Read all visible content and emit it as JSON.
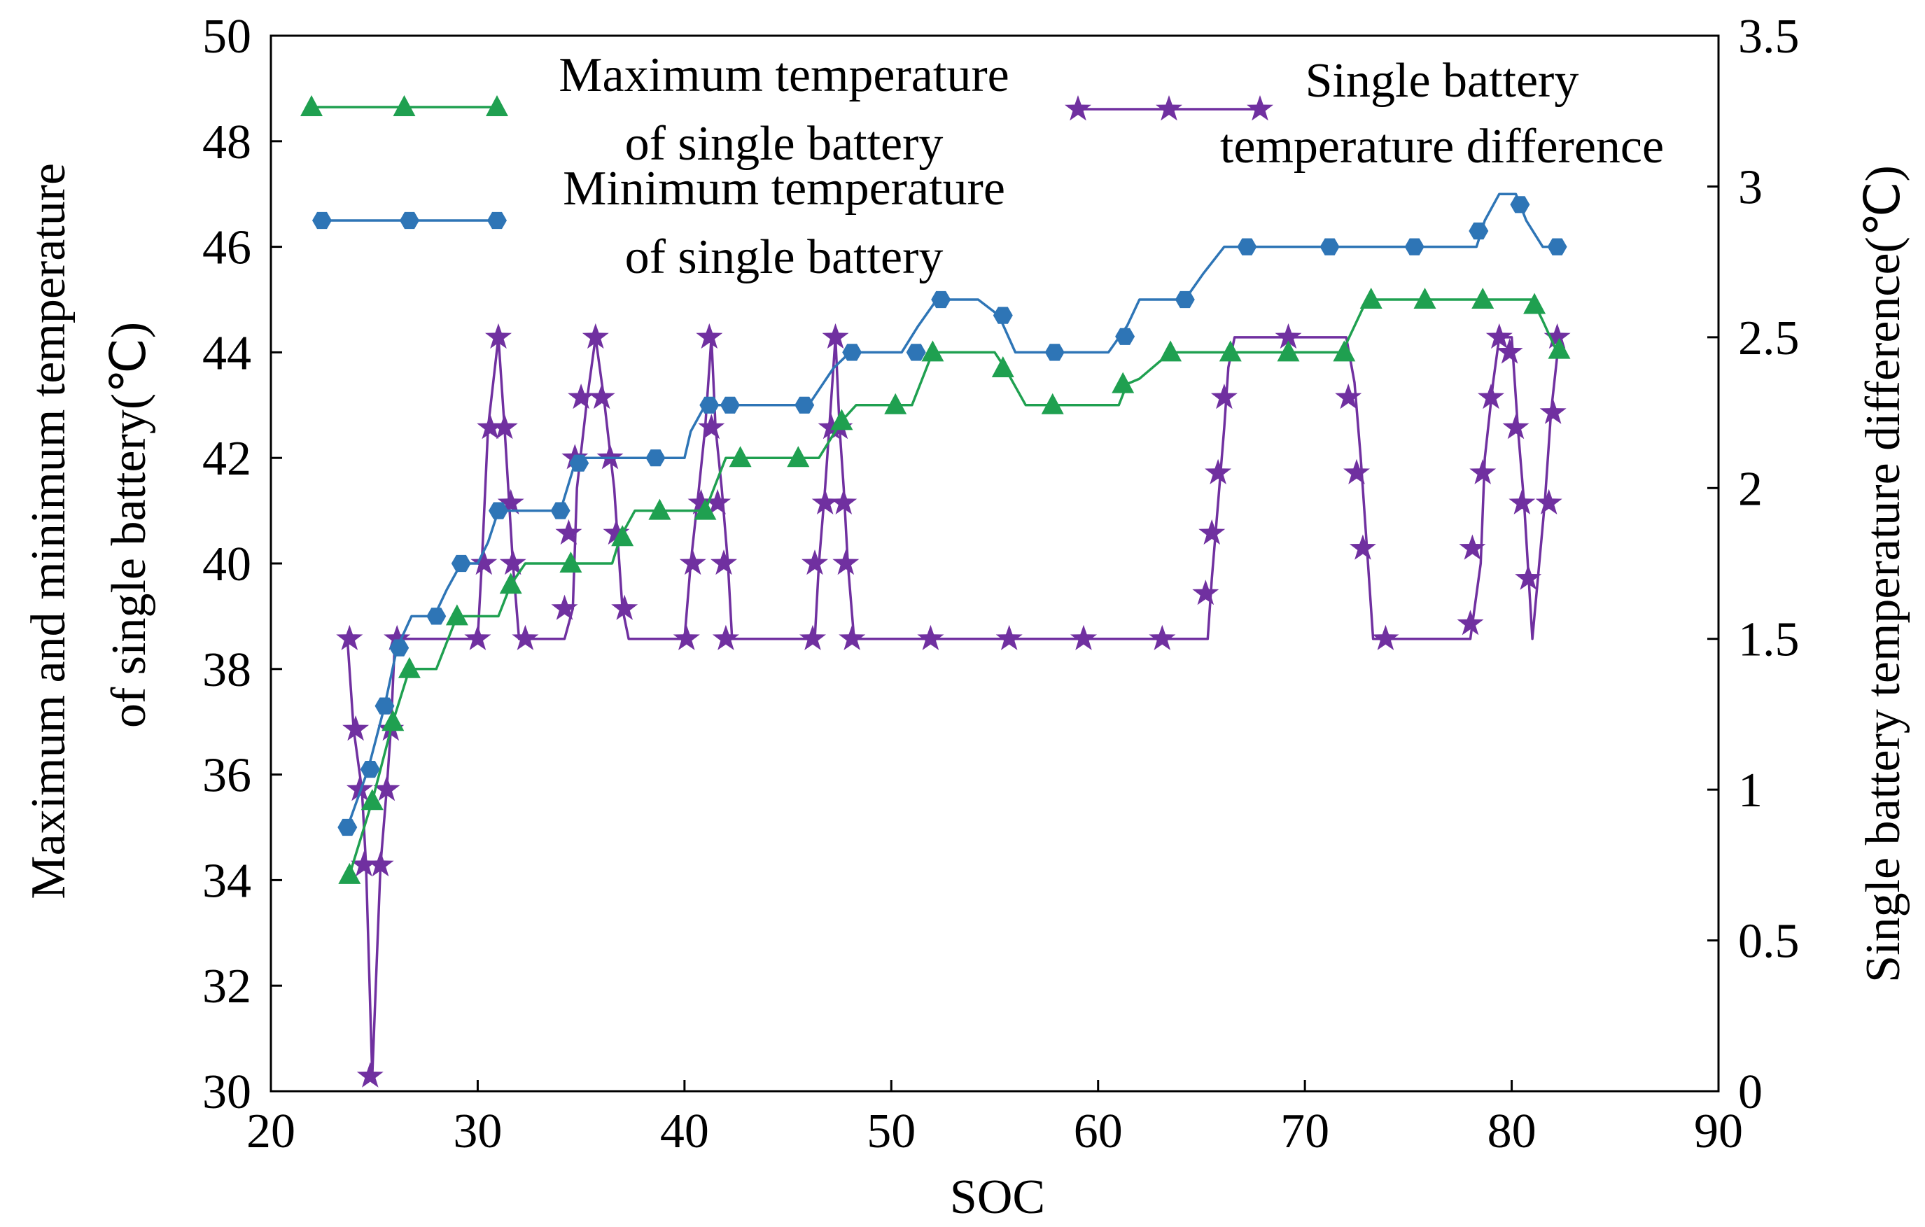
{
  "chart_data": {
    "type": "line",
    "xlabel": "SOC",
    "ylabel_left": [
      "Maximum and minimum temperature",
      "of single battery(℃)"
    ],
    "ylabel_right": "Single battery temperature difference(℃)",
    "xlim": [
      20,
      90
    ],
    "ylim_left": [
      30,
      50
    ],
    "ylim_right": [
      0,
      3.5
    ],
    "x_ticks": [
      "20",
      "30",
      "40",
      "50",
      "60",
      "70",
      "80",
      "90"
    ],
    "y_left_ticks": [
      "30",
      "32",
      "34",
      "36",
      "38",
      "40",
      "42",
      "44",
      "46",
      "48",
      "50"
    ],
    "y_right_ticks": [
      "0",
      "0.5",
      "1",
      "1.5",
      "2",
      "2.5",
      "3",
      "3.5"
    ],
    "grid": false,
    "legend_position": "top",
    "series": [
      {
        "name": "Maximum temperature of single battery",
        "legend_lines": [
          "Maximum temperature",
          "of single battery"
        ],
        "axis": "left",
        "color": "#1fa050",
        "marker": "triangle",
        "points": [
          [
            23.8,
            34.1
          ],
          [
            24.9,
            35.5
          ],
          [
            25.9,
            37
          ],
          [
            26.7,
            38
          ],
          [
            28,
            38
          ],
          [
            29,
            39
          ],
          [
            31,
            39
          ],
          [
            31.6,
            39.6
          ],
          [
            32.3,
            40
          ],
          [
            34.5,
            40
          ],
          [
            36.5,
            40
          ],
          [
            36.9,
            40.5
          ],
          [
            37.6,
            41
          ],
          [
            38.8,
            41
          ],
          [
            41,
            41
          ],
          [
            42,
            42
          ],
          [
            42.6,
            42
          ],
          [
            45.5,
            42
          ],
          [
            46.5,
            42
          ],
          [
            47.6,
            42.7
          ],
          [
            48.3,
            43
          ],
          [
            50.2,
            43
          ],
          [
            51,
            43
          ],
          [
            52,
            44
          ],
          [
            55,
            44
          ],
          [
            55.5,
            43.7
          ],
          [
            56.5,
            43
          ],
          [
            57.8,
            43
          ],
          [
            61,
            43
          ],
          [
            61.4,
            43.4
          ],
          [
            62,
            43.5
          ],
          [
            63.5,
            44
          ],
          [
            66.5,
            44
          ],
          [
            69.2,
            44
          ],
          [
            71.8,
            44
          ],
          [
            73,
            45
          ],
          [
            75.8,
            45
          ],
          [
            78.6,
            45
          ],
          [
            81,
            45
          ],
          [
            81.5,
            44.6
          ],
          [
            82.2,
            44
          ]
        ],
        "markers": [
          [
            23.8,
            34.1
          ],
          [
            24.9,
            35.5
          ],
          [
            25.9,
            37
          ],
          [
            26.7,
            38
          ],
          [
            29,
            39
          ],
          [
            31.6,
            39.6
          ],
          [
            34.5,
            40
          ],
          [
            37,
            40.5
          ],
          [
            38.8,
            41
          ],
          [
            41,
            41
          ],
          [
            42.7,
            42
          ],
          [
            45.5,
            42
          ],
          [
            47.6,
            42.7
          ],
          [
            50.2,
            43
          ],
          [
            52,
            44
          ],
          [
            55.4,
            43.7
          ],
          [
            57.8,
            43
          ],
          [
            61.2,
            43.4
          ],
          [
            63.5,
            44
          ],
          [
            66.4,
            44
          ],
          [
            69.2,
            44
          ],
          [
            71.9,
            44
          ],
          [
            73.2,
            45
          ],
          [
            75.8,
            45
          ],
          [
            78.6,
            45
          ],
          [
            81.1,
            44.9
          ],
          [
            82.3,
            44.05
          ]
        ]
      },
      {
        "name": "Minimum temperature of single battery",
        "legend_lines": [
          "Minimum temperature",
          "of single battery"
        ],
        "axis": "left",
        "color": "#2e75b6",
        "marker": "hexagon",
        "points": [
          [
            23.7,
            35
          ],
          [
            24.7,
            36.1
          ],
          [
            25.5,
            37.3
          ],
          [
            26.1,
            38.4
          ],
          [
            26.8,
            39
          ],
          [
            27.9,
            39
          ],
          [
            28.5,
            39.5
          ],
          [
            29.2,
            40
          ],
          [
            30,
            40
          ],
          [
            30.5,
            40.4
          ],
          [
            31,
            41
          ],
          [
            34,
            41
          ],
          [
            34.7,
            41.9
          ],
          [
            35.2,
            42
          ],
          [
            40,
            42
          ],
          [
            40.3,
            42.5
          ],
          [
            41,
            43
          ],
          [
            42.2,
            43
          ],
          [
            46,
            43
          ],
          [
            47.2,
            43.7
          ],
          [
            48,
            44
          ],
          [
            50.5,
            44
          ],
          [
            51.3,
            44.5
          ],
          [
            52.2,
            45
          ],
          [
            54.2,
            45
          ],
          [
            55.2,
            44.7
          ],
          [
            56,
            44
          ],
          [
            57.8,
            44
          ],
          [
            60.5,
            44
          ],
          [
            61.4,
            44.5
          ],
          [
            62,
            45
          ],
          [
            64.2,
            45
          ],
          [
            65.1,
            45.5
          ],
          [
            66.1,
            46
          ],
          [
            75.5,
            46
          ],
          [
            78.3,
            46
          ],
          [
            78.7,
            46.5
          ],
          [
            79.4,
            47
          ],
          [
            80.2,
            47
          ],
          [
            80.7,
            46.5
          ],
          [
            81.5,
            46
          ],
          [
            82.1,
            46
          ]
        ],
        "markers": [
          [
            23.7,
            35
          ],
          [
            24.8,
            36.1
          ],
          [
            25.5,
            37.3
          ],
          [
            26.2,
            38.4
          ],
          [
            28,
            39
          ],
          [
            29.2,
            40
          ],
          [
            31,
            41
          ],
          [
            34,
            41
          ],
          [
            34.9,
            41.9
          ],
          [
            38.6,
            42
          ],
          [
            41.2,
            43
          ],
          [
            42.2,
            43
          ],
          [
            45.8,
            43
          ],
          [
            48.1,
            44
          ],
          [
            51.2,
            44
          ],
          [
            52.4,
            45
          ],
          [
            55.4,
            44.7
          ],
          [
            57.9,
            44
          ],
          [
            61.3,
            44.3
          ],
          [
            64.2,
            45
          ],
          [
            67.2,
            46
          ],
          [
            71.2,
            46
          ],
          [
            75.3,
            46
          ],
          [
            78.4,
            46.3
          ],
          [
            80.4,
            46.8
          ],
          [
            82.2,
            46
          ]
        ]
      },
      {
        "name": "Single battery temperature difference",
        "legend_lines": [
          "Single battery",
          "temperature difference"
        ],
        "axis": "right",
        "color": "#7030a0",
        "marker": "star",
        "points": [
          [
            23.7,
            1.5
          ],
          [
            24,
            1.2
          ],
          [
            24.4,
            1
          ],
          [
            24.6,
            0.75
          ],
          [
            24.9,
            0.05
          ],
          [
            25.3,
            0.75
          ],
          [
            25.6,
            1
          ],
          [
            25.8,
            1.2
          ],
          [
            26,
            1.5
          ],
          [
            30,
            1.5
          ],
          [
            30.2,
            1.75
          ],
          [
            30.5,
            2.2
          ],
          [
            31,
            2.5
          ],
          [
            31.3,
            2.2
          ],
          [
            31.7,
            1.75
          ],
          [
            32,
            1.5
          ],
          [
            34.2,
            1.5
          ],
          [
            34.6,
            1.6
          ],
          [
            34.8,
            2
          ],
          [
            35.3,
            2.3
          ],
          [
            35.7,
            2.5
          ],
          [
            36.1,
            2.3
          ],
          [
            36.6,
            2
          ],
          [
            37,
            1.6
          ],
          [
            37.3,
            1.5
          ],
          [
            40,
            1.5
          ],
          [
            40.3,
            1.75
          ],
          [
            40.7,
            2
          ],
          [
            41,
            2.2
          ],
          [
            41.3,
            2.5
          ],
          [
            41.5,
            2.2
          ],
          [
            41.8,
            2
          ],
          [
            42.1,
            1.75
          ],
          [
            42.3,
            1.5
          ],
          [
            46.3,
            1.5
          ],
          [
            46.5,
            1.75
          ],
          [
            46.8,
            2
          ],
          [
            47,
            2.2
          ],
          [
            47.3,
            2.5
          ],
          [
            47.5,
            2.2
          ],
          [
            47.7,
            2
          ],
          [
            47.9,
            1.75
          ],
          [
            48.2,
            1.5
          ],
          [
            65.3,
            1.5
          ],
          [
            65.5,
            1.7
          ],
          [
            65.8,
            1.95
          ],
          [
            66.1,
            2.2
          ],
          [
            66.3,
            2.4
          ],
          [
            66.6,
            2.5
          ],
          [
            72,
            2.5
          ],
          [
            72.4,
            2.35
          ],
          [
            72.7,
            2.1
          ],
          [
            73,
            1.8
          ],
          [
            73.3,
            1.5
          ],
          [
            78,
            1.5
          ],
          [
            78.5,
            1.75
          ],
          [
            78.7,
            2.1
          ],
          [
            79.1,
            2.35
          ],
          [
            79.4,
            2.5
          ],
          [
            80,
            2.5
          ],
          [
            80.3,
            2.2
          ],
          [
            80.6,
            1.95
          ],
          [
            81,
            1.5
          ],
          [
            81.6,
            1.95
          ],
          [
            81.9,
            2.25
          ],
          [
            82.3,
            2.5
          ]
        ],
        "markers": [
          [
            23.8,
            1.5
          ],
          [
            24.1,
            1.2
          ],
          [
            24.3,
            1
          ],
          [
            24.5,
            0.75
          ],
          [
            24.8,
            0.05
          ],
          [
            25.3,
            0.75
          ],
          [
            25.6,
            1
          ],
          [
            25.8,
            1.2
          ],
          [
            26.1,
            1.5
          ],
          [
            30,
            1.5
          ],
          [
            30.3,
            1.75
          ],
          [
            30.6,
            2.2
          ],
          [
            31,
            2.5
          ],
          [
            31.3,
            2.2
          ],
          [
            31.6,
            1.95
          ],
          [
            31.7,
            1.75
          ],
          [
            32.3,
            1.5
          ],
          [
            34.2,
            1.6
          ],
          [
            34.4,
            1.85
          ],
          [
            34.7,
            2.1
          ],
          [
            35,
            2.3
          ],
          [
            35.7,
            2.5
          ],
          [
            36,
            2.3
          ],
          [
            36.4,
            2.1
          ],
          [
            36.7,
            1.85
          ],
          [
            37.1,
            1.6
          ],
          [
            40.1,
            1.5
          ],
          [
            40.4,
            1.75
          ],
          [
            40.8,
            1.95
          ],
          [
            41.2,
            2.5
          ],
          [
            41.3,
            2.2
          ],
          [
            41.6,
            1.95
          ],
          [
            41.9,
            1.75
          ],
          [
            42,
            1.5
          ],
          [
            46.2,
            1.5
          ],
          [
            46.3,
            1.75
          ],
          [
            46.8,
            1.95
          ],
          [
            47.1,
            2.2
          ],
          [
            47.3,
            2.5
          ],
          [
            47.5,
            2.2
          ],
          [
            47.7,
            1.95
          ],
          [
            47.8,
            1.75
          ],
          [
            48.1,
            1.5
          ],
          [
            51.9,
            1.5
          ],
          [
            55.7,
            1.5
          ],
          [
            59.3,
            1.5
          ],
          [
            63.1,
            1.5
          ],
          [
            65.2,
            1.65
          ],
          [
            65.5,
            1.85
          ],
          [
            65.8,
            2.05
          ],
          [
            66.1,
            2.3
          ],
          [
            69.2,
            2.5
          ],
          [
            72.1,
            2.3
          ],
          [
            72.5,
            2.05
          ],
          [
            72.8,
            1.8
          ],
          [
            73.9,
            1.5
          ],
          [
            78,
            1.55
          ],
          [
            78.1,
            1.8
          ],
          [
            78.6,
            2.05
          ],
          [
            79,
            2.3
          ],
          [
            79.4,
            2.5
          ],
          [
            79.9,
            2.45
          ],
          [
            80.2,
            2.2
          ],
          [
            80.5,
            1.95
          ],
          [
            80.8,
            1.7
          ],
          [
            81.8,
            1.95
          ],
          [
            82,
            2.25
          ],
          [
            82.2,
            2.5
          ]
        ]
      }
    ]
  }
}
